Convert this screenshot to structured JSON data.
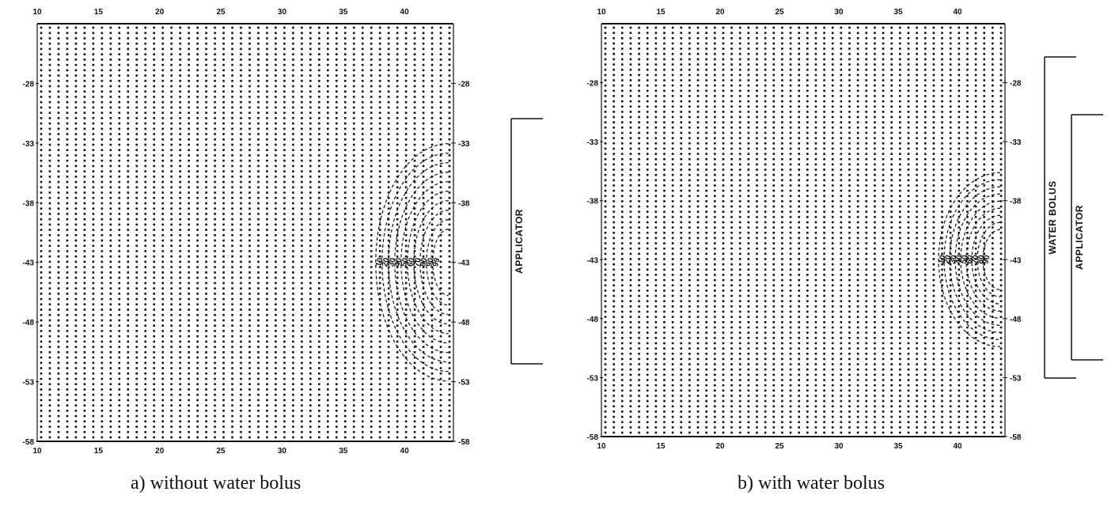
{
  "figure": {
    "caption_a": "a)  without water bolus",
    "caption_b": "b)  with water bolus"
  },
  "chart_data": [
    {
      "type": "scatter",
      "title": "",
      "caption": "a)  without water bolus",
      "x_ticks": [
        "10",
        "15",
        "20",
        "25",
        "30",
        "35",
        "40"
      ],
      "y_ticks": [
        "-28",
        "-33",
        "-38",
        "-43",
        "-48",
        "-53",
        "-58"
      ],
      "xlim": [
        10,
        44
      ],
      "ylim": [
        -58,
        -23
      ],
      "grid_points": "regular dot grid over the full region",
      "contour_labels": [
        "10",
        "20",
        "30",
        "40",
        "50",
        "60",
        "70",
        "80",
        "90",
        "99"
      ],
      "side_labels": [
        {
          "text": "APPLICATOR",
          "from": -33,
          "to": -53
        }
      ]
    },
    {
      "type": "scatter",
      "title": "",
      "caption": "b)  with water bolus",
      "x_ticks": [
        "10",
        "15",
        "20",
        "25",
        "30",
        "35",
        "40"
      ],
      "y_ticks": [
        "-28",
        "-33",
        "-38",
        "-43",
        "-48",
        "-53",
        "-58"
      ],
      "right_y_ticks": [
        "-28",
        "-33",
        "-38",
        "-43",
        "-48",
        "-53",
        "-58"
      ],
      "xlim": [
        10,
        44
      ],
      "ylim": [
        -58,
        -23
      ],
      "grid_points": "regular dot grid over the full region",
      "contour_labels": [
        "10",
        "20",
        "30",
        "40",
        "50",
        "60",
        "70",
        "80",
        "90"
      ],
      "side_labels": [
        {
          "text": "WATER BOLUS",
          "from": -27,
          "to": -53
        },
        {
          "text": "APPLICATOR",
          "from": -33,
          "to": -53
        }
      ]
    }
  ]
}
